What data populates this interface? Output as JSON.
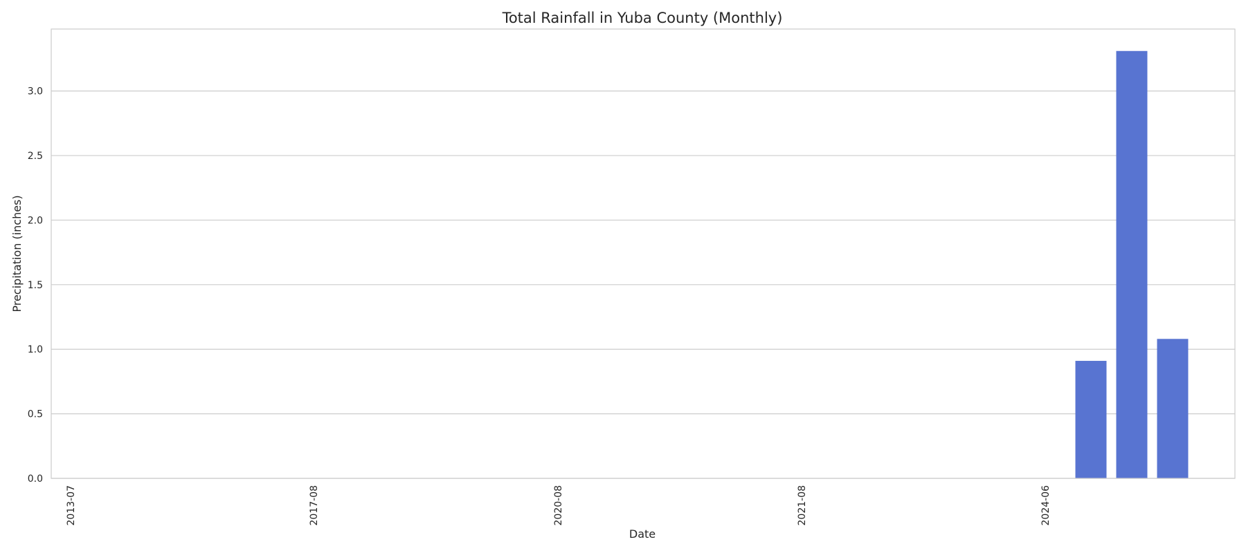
{
  "chart_data": {
    "type": "bar",
    "title": "Total Rainfall in Yuba County (Monthly)",
    "xlabel": "Date",
    "ylabel": "Precipitation (inches)",
    "ylim": [
      0,
      3.48
    ],
    "yticks": [
      "0.0",
      "0.5",
      "1.0",
      "1.5",
      "2.0",
      "2.5",
      "3.0"
    ],
    "grid": true,
    "x_tick_labels": [
      "2013-07",
      "2017-08",
      "2020-08",
      "2021-08",
      "2024-06"
    ],
    "bars": [
      {
        "value": 0.91
      },
      {
        "value": 3.31
      },
      {
        "value": 1.08
      }
    ],
    "bar_color": "#5874d1"
  }
}
